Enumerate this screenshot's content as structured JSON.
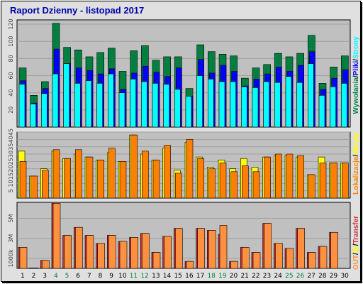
{
  "title": "Raport Dzienny -  listopad 2017",
  "colors": {
    "background": "#e0e0e0",
    "plot_bg": "#c0c0c0",
    "grid": "#a0a0a0",
    "wywolania": "#008040",
    "pliki": "#0000ff",
    "strony": "#00ffff",
    "lokalizacje": "#ff8000",
    "wizyty": "#ffff00",
    "in": "#d03030",
    "out": "#ff9040",
    "weekend_label": "#008040",
    "weekday_label": "#000000"
  },
  "chart_data": [
    {
      "type": "bar",
      "panel": "top",
      "ylim": [
        0,
        125
      ],
      "yticks": [
        "20",
        "40",
        "60",
        "80",
        "100",
        "120"
      ],
      "ytick_values": [
        20,
        40,
        60,
        80,
        100,
        120
      ],
      "categories": [
        "1",
        "2",
        "3",
        "4",
        "5",
        "6",
        "7",
        "8",
        "9",
        "10",
        "11",
        "12",
        "13",
        "14",
        "15",
        "16",
        "17",
        "18",
        "19",
        "20",
        "21",
        "22",
        "23",
        "24",
        "25",
        "26",
        "27",
        "28",
        "29",
        "30"
      ],
      "series": [
        {
          "name": "Wywołania",
          "values": [
            69,
            37,
            53,
            121,
            93,
            90,
            82,
            87,
            92,
            65,
            89,
            95,
            78,
            82,
            82,
            45,
            96,
            88,
            85,
            83,
            57,
            69,
            73,
            86,
            82,
            86,
            107,
            51,
            70,
            83
          ]
        },
        {
          "name": "Pliki",
          "values": [
            54,
            28,
            45,
            91,
            74,
            69,
            66,
            62,
            68,
            44,
            63,
            71,
            64,
            59,
            69,
            36,
            79,
            63,
            72,
            65,
            48,
            56,
            62,
            70,
            65,
            72,
            88,
            44,
            57,
            67
          ]
        },
        {
          "name": "Strony",
          "values": [
            50,
            27,
            39,
            62,
            74,
            51,
            54,
            51,
            62,
            40,
            56,
            53,
            51,
            50,
            44,
            36,
            60,
            56,
            53,
            53,
            47,
            46,
            53,
            52,
            59,
            52,
            74,
            37,
            47,
            51
          ]
        }
      ]
    },
    {
      "type": "bar",
      "panel": "middle",
      "ylim": [
        0,
        45
      ],
      "yticks": [
        "5",
        "10",
        "15",
        "20",
        "25",
        "30",
        "35",
        "40",
        "45"
      ],
      "ytick_values": [
        5,
        10,
        15,
        20,
        25,
        30,
        35,
        40,
        45
      ],
      "categories": [
        "1",
        "2",
        "3",
        "4",
        "5",
        "6",
        "7",
        "8",
        "9",
        "10",
        "11",
        "12",
        "13",
        "14",
        "15",
        "16",
        "17",
        "18",
        "19",
        "20",
        "21",
        "22",
        "23",
        "24",
        "25",
        "26",
        "27",
        "28",
        "29",
        "30"
      ],
      "series": [
        {
          "name": "Wizyty",
          "values": [
            32,
            15,
            20,
            32,
            27,
            30,
            28,
            26,
            31,
            25,
            43,
            30,
            26,
            34,
            19,
            38,
            28,
            21,
            26,
            20,
            27,
            21,
            28,
            29,
            29,
            28,
            16,
            28,
            24,
            24
          ]
        },
        {
          "name": "Lokalizacje",
          "values": [
            25,
            15,
            19,
            33,
            27,
            33,
            28,
            26,
            34,
            25,
            43,
            32,
            26,
            36,
            17,
            40,
            27,
            20,
            24,
            18,
            22,
            18,
            28,
            30,
            30,
            29,
            16,
            24,
            24,
            24
          ]
        }
      ]
    },
    {
      "type": "bar",
      "panel": "bottom",
      "ylim": [
        0,
        6.6
      ],
      "yticks": [
        "1000k",
        "3M",
        "5M"
      ],
      "ytick_values": [
        1,
        3,
        5
      ],
      "ytick_unit": "MB",
      "categories": [
        "1",
        "2",
        "3",
        "4",
        "5",
        "6",
        "7",
        "8",
        "9",
        "10",
        "11",
        "12",
        "13",
        "14",
        "15",
        "16",
        "17",
        "18",
        "19",
        "20",
        "21",
        "22",
        "23",
        "24",
        "25",
        "26",
        "27",
        "28",
        "29",
        "30"
      ],
      "series": [
        {
          "name": "IN",
          "values": [
            2.1,
            0.05,
            0.8,
            6.5,
            3.3,
            4.1,
            3.3,
            2.5,
            3.3,
            2.7,
            3.1,
            3.5,
            1.6,
            3.2,
            4.0,
            0.7,
            4.0,
            3.8,
            3.4,
            0.7,
            2.1,
            1.6,
            4.5,
            2.5,
            2.0,
            4.0,
            1.6,
            2.2,
            3.6,
            0.0
          ]
        },
        {
          "name": "OUT",
          "values": [
            2.1,
            0.05,
            0.8,
            6.5,
            3.3,
            4.1,
            3.3,
            2.5,
            3.3,
            2.7,
            3.1,
            3.5,
            1.6,
            3.2,
            4.0,
            0.7,
            4.0,
            3.8,
            4.3,
            0.7,
            2.1,
            1.6,
            4.5,
            2.5,
            2.0,
            4.0,
            1.6,
            2.2,
            3.6,
            0.0
          ]
        }
      ]
    }
  ],
  "x_labels": [
    "1",
    "2",
    "3",
    "4",
    "5",
    "6",
    "7",
    "8",
    "9",
    "10",
    "11",
    "12",
    "13",
    "14",
    "15",
    "16",
    "17",
    "18",
    "19",
    "20",
    "21",
    "22",
    "23",
    "24",
    "25",
    "26",
    "27",
    "28",
    "29",
    "30"
  ],
  "weekend_days": [
    "4",
    "5",
    "11",
    "12",
    "18",
    "19",
    "25",
    "26"
  ],
  "right_labels": {
    "top": [
      {
        "text": "Wywołania",
        "color_key": "wywolania"
      },
      {
        "text": "/",
        "color_key": "weekday_label"
      },
      {
        "text": "Pliki",
        "color_key": "pliki"
      },
      {
        "text": "/",
        "color_key": "weekday_label"
      },
      {
        "text": "Strony",
        "color_key": "strony"
      }
    ],
    "middle": [
      {
        "text": "Lokalizacje",
        "color_key": "lokalizacje"
      },
      {
        "text": "/",
        "color_key": "weekday_label"
      },
      {
        "text": "Wizyty",
        "color_key": "wizyty"
      }
    ],
    "bottom": [
      {
        "text": "OUT",
        "color_key": "out"
      },
      {
        "text": "/",
        "color_key": "weekday_label"
      },
      {
        "text": "IN",
        "color_key": "wizyty"
      },
      {
        "text": "/",
        "color_key": "weekday_label"
      },
      {
        "text": "Transfer",
        "color_key": "in"
      }
    ]
  }
}
